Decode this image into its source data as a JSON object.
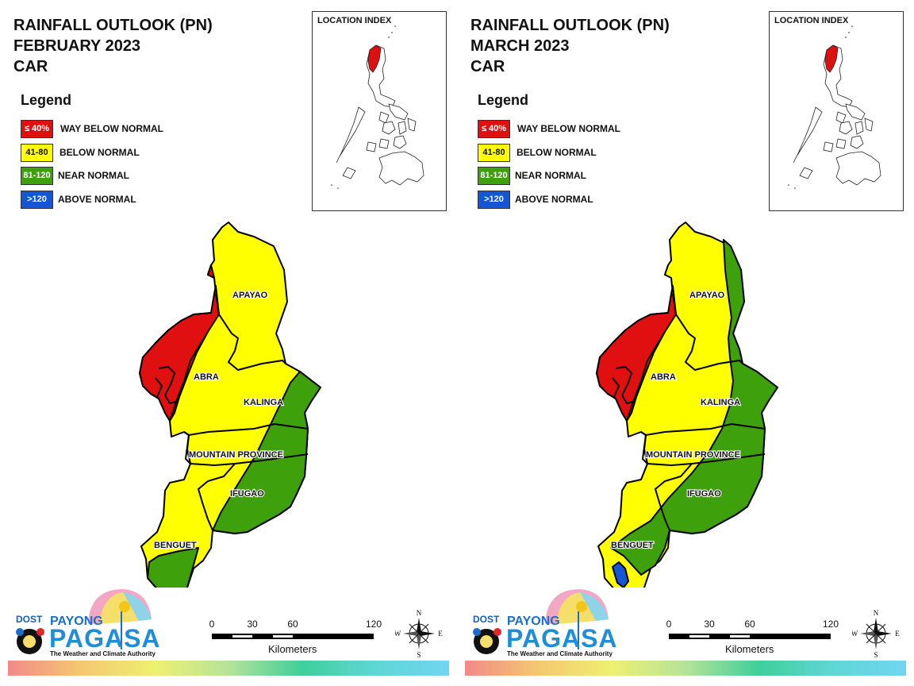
{
  "panels": [
    {
      "title_lines": [
        "RAINFALL OUTLOOK (PN)",
        "FEBRUARY 2023",
        "CAR"
      ],
      "legend_title": "Legend",
      "legend": [
        {
          "swatch": "≤ 40%",
          "label": "WAY BELOW NORMAL",
          "color": "#e01010",
          "text_color": "#ffffff"
        },
        {
          "swatch": "41-80",
          "label": "BELOW NORMAL",
          "color": "#ffff00",
          "text_color": "#111111"
        },
        {
          "swatch": "81-120",
          "label": "NEAR NORMAL",
          "color": "#3ea10c",
          "text_color": "#ffffff"
        },
        {
          "swatch": ">120",
          "label": "ABOVE NORMAL",
          "color": "#1457d6",
          "text_color": "#ffffff"
        }
      ],
      "location_index_title": "LOCATION INDEX",
      "provinces": [
        "APAYAO",
        "ABRA",
        "KALINGA",
        "MOUNTAIN PROVINCE",
        "IFUGAO",
        "BENGUET"
      ],
      "scale": {
        "ticks": [
          "0",
          "30",
          "60",
          "120"
        ],
        "unit": "Kilometers"
      },
      "compass": {
        "n": "N",
        "s": "S",
        "e": "E",
        "w": "W"
      },
      "logo": {
        "dost": "DOST",
        "payong": "PAYONG",
        "pagasa": "PAGASA",
        "tagline": "The Weather and Climate Authority"
      }
    },
    {
      "title_lines": [
        "RAINFALL OUTLOOK (PN)",
        "MARCH 2023",
        "CAR"
      ],
      "legend_title": "Legend",
      "legend": [
        {
          "swatch": "≤ 40%",
          "label": "WAY BELOW NORMAL",
          "color": "#e01010",
          "text_color": "#ffffff"
        },
        {
          "swatch": "41-80",
          "label": "BELOW NORMAL",
          "color": "#ffff00",
          "text_color": "#111111"
        },
        {
          "swatch": "81-120",
          "label": "NEAR NORMAL",
          "color": "#3ea10c",
          "text_color": "#ffffff"
        },
        {
          "swatch": ">120",
          "label": "ABOVE NORMAL",
          "color": "#1457d6",
          "text_color": "#ffffff"
        }
      ],
      "location_index_title": "LOCATION INDEX",
      "provinces": [
        "APAYAO",
        "ABRA",
        "KALINGA",
        "MOUNTAIN PROVINCE",
        "IFUGAO",
        "BENGUET"
      ],
      "scale": {
        "ticks": [
          "0",
          "30",
          "60",
          "120"
        ],
        "unit": "Kilometers"
      },
      "compass": {
        "n": "N",
        "s": "S",
        "e": "E",
        "w": "W"
      },
      "logo": {
        "dost": "DOST",
        "payong": "PAYONG",
        "pagasa": "PAGASA",
        "tagline": "The Weather and Climate Authority"
      }
    }
  ]
}
